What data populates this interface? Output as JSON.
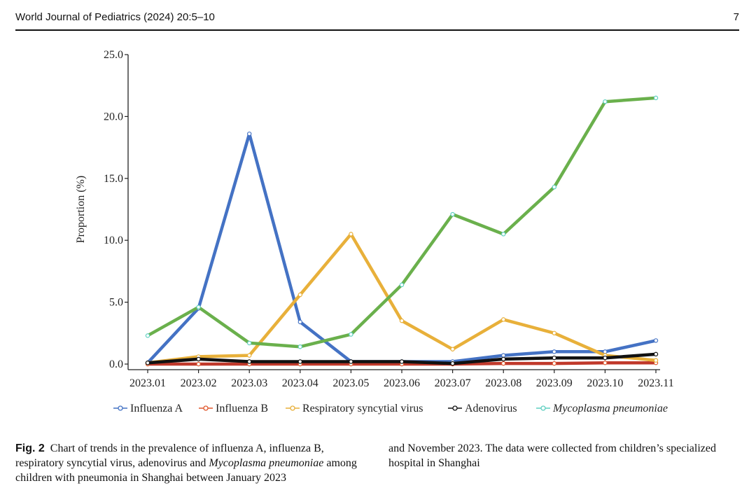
{
  "header": {
    "journal": "World Journal of Pediatrics (2024) 20:5–10",
    "page_number": "7"
  },
  "caption": {
    "label": "Fig. 2",
    "text_part1": "Chart of trends in the prevalence of influenza A, influenza B, respiratory syncytial virus, adenovirus and ",
    "italic_term": "Mycoplasma pneumoniae",
    "text_part2": " among children with pneumonia in Shanghai between January 2023",
    "text_right": "and November 2023. The data were collected from children’s specialized hospital in Shanghai"
  },
  "chart_data": {
    "type": "line",
    "ylabel": "Proportion (%)",
    "xlabel": "",
    "ylim": [
      0,
      25
    ],
    "yticks": [
      "0.0",
      "5.0",
      "10.0",
      "15.0",
      "20.0",
      "25.0"
    ],
    "legend_position": "bottom",
    "x": [
      "2023.01",
      "2023.02",
      "2023.03",
      "2023.04",
      "2023.05",
      "2023.06",
      "2023.07",
      "2023.08",
      "2023.09",
      "2023.10",
      "2023.11"
    ],
    "series": [
      {
        "name": "Influenza A",
        "color": "#4472c4",
        "marker": "#4472c4",
        "values": [
          0.1,
          4.5,
          18.6,
          3.4,
          0.2,
          0.2,
          0.2,
          0.7,
          1.0,
          1.0,
          1.9
        ],
        "italic": false
      },
      {
        "name": "Influenza B",
        "color": "#c0392b",
        "marker": "#e0572c",
        "values": [
          0.0,
          0.0,
          0.0,
          0.0,
          0.0,
          0.0,
          0.0,
          0.05,
          0.05,
          0.1,
          0.1
        ],
        "italic": false
      },
      {
        "name": "Respiratory syncytial virus",
        "color": "#e8b03a",
        "marker": "#e8b03a",
        "values": [
          0.1,
          0.6,
          0.7,
          5.6,
          10.5,
          3.5,
          1.2,
          3.6,
          2.5,
          0.7,
          0.3
        ],
        "italic": false
      },
      {
        "name": "Adenovirus",
        "color": "#111111",
        "marker": "#111111",
        "values": [
          0.1,
          0.4,
          0.2,
          0.2,
          0.2,
          0.2,
          0.05,
          0.4,
          0.5,
          0.5,
          0.8
        ],
        "italic": false
      },
      {
        "name": "Mycoplasma pneumoniae",
        "color": "#6ab04c",
        "marker": "#5ecfc0",
        "values": [
          2.3,
          4.6,
          1.7,
          1.4,
          2.4,
          6.4,
          12.1,
          10.5,
          14.3,
          21.2,
          21.5
        ],
        "italic": true
      }
    ]
  }
}
